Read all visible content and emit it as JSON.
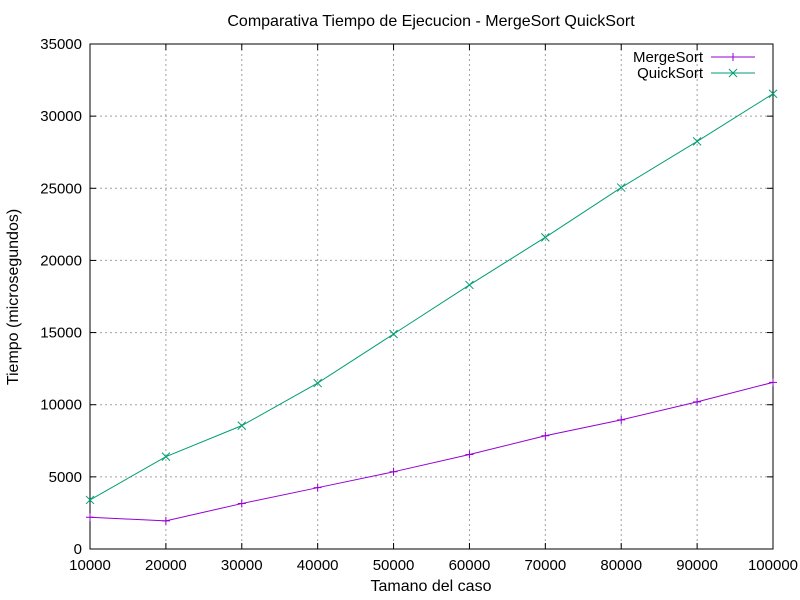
{
  "chart_data": {
    "type": "line",
    "title": "Comparativa Tiempo de Ejecucion - MergeSort  QuickSort",
    "xlabel": "Tamano del caso",
    "ylabel": "Tiempo (microsegundos)",
    "xlim": [
      10000,
      100000
    ],
    "ylim": [
      0,
      35000
    ],
    "xticks": [
      10000,
      20000,
      30000,
      40000,
      50000,
      60000,
      70000,
      80000,
      90000,
      100000
    ],
    "yticks": [
      0,
      5000,
      10000,
      15000,
      20000,
      25000,
      30000,
      35000
    ],
    "grid": true,
    "legend_position": "top-right",
    "x": [
      10000,
      20000,
      30000,
      40000,
      50000,
      60000,
      70000,
      80000,
      90000,
      100000
    ],
    "series": [
      {
        "name": "MergeSort",
        "marker": "plus",
        "color": "#9400d3",
        "values": [
          2200,
          1950,
          3150,
          4250,
          5350,
          6550,
          7850,
          8950,
          10200,
          11550
        ]
      },
      {
        "name": "QuickSort",
        "marker": "cross",
        "color": "#009e73",
        "values": [
          3400,
          6400,
          8550,
          11500,
          14900,
          18300,
          21600,
          25050,
          28250,
          31550
        ]
      }
    ]
  }
}
